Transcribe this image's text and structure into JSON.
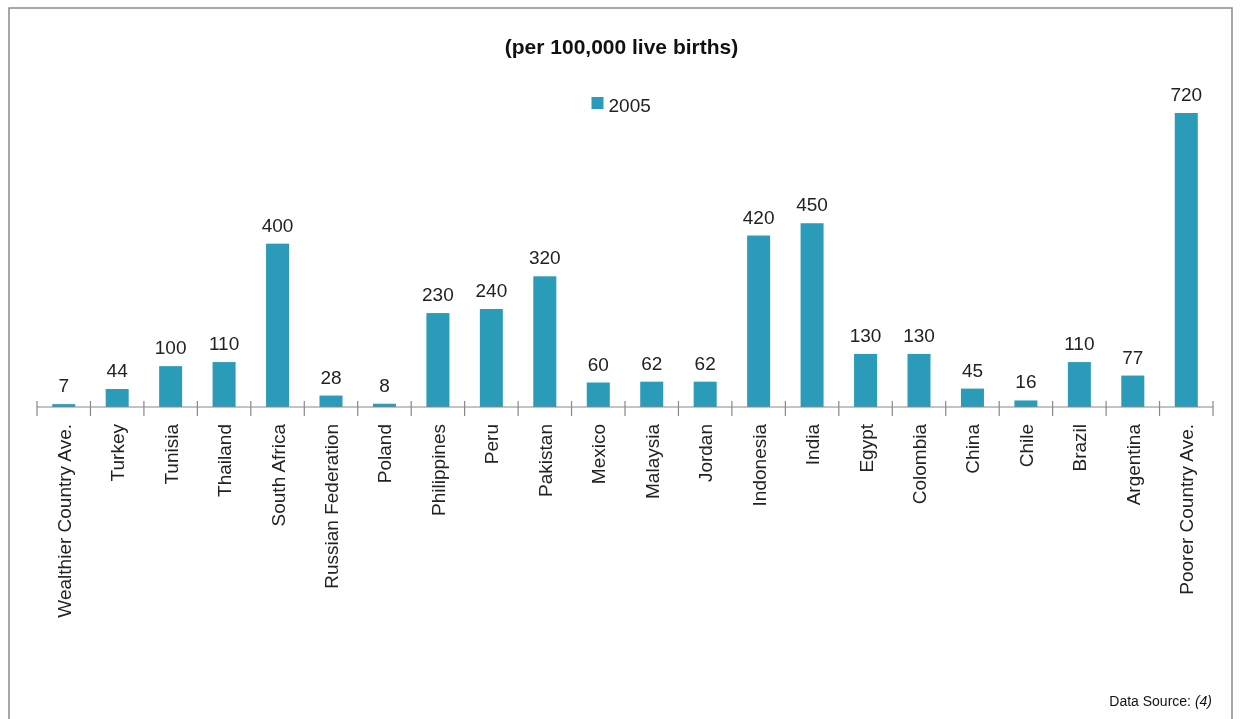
{
  "chart_data": {
    "type": "bar",
    "title": "(per 100,000 live births)",
    "categories": [
      "Wealthier Country Ave.",
      "Turkey",
      "Tunisia",
      "Thailand",
      "South Africa",
      "Russian Federation",
      "Poland",
      "Philippines",
      "Peru",
      "Pakistan",
      "Mexico",
      "Malaysia",
      "Jordan",
      "Indonesia",
      "India",
      "Egypt",
      "Colombia",
      "China",
      "Chile",
      "Brazil",
      "Argentina",
      "Poorer Country Ave."
    ],
    "series": [
      {
        "name": "2005",
        "color": "#2a9bb8",
        "values": [
          7,
          44,
          100,
          110,
          400,
          28,
          8,
          230,
          240,
          320,
          60,
          62,
          62,
          420,
          450,
          130,
          130,
          45,
          16,
          110,
          77,
          720
        ]
      }
    ],
    "data_labels": true,
    "legend": "top",
    "annotations": [
      "Data Source: (4)"
    ]
  }
}
